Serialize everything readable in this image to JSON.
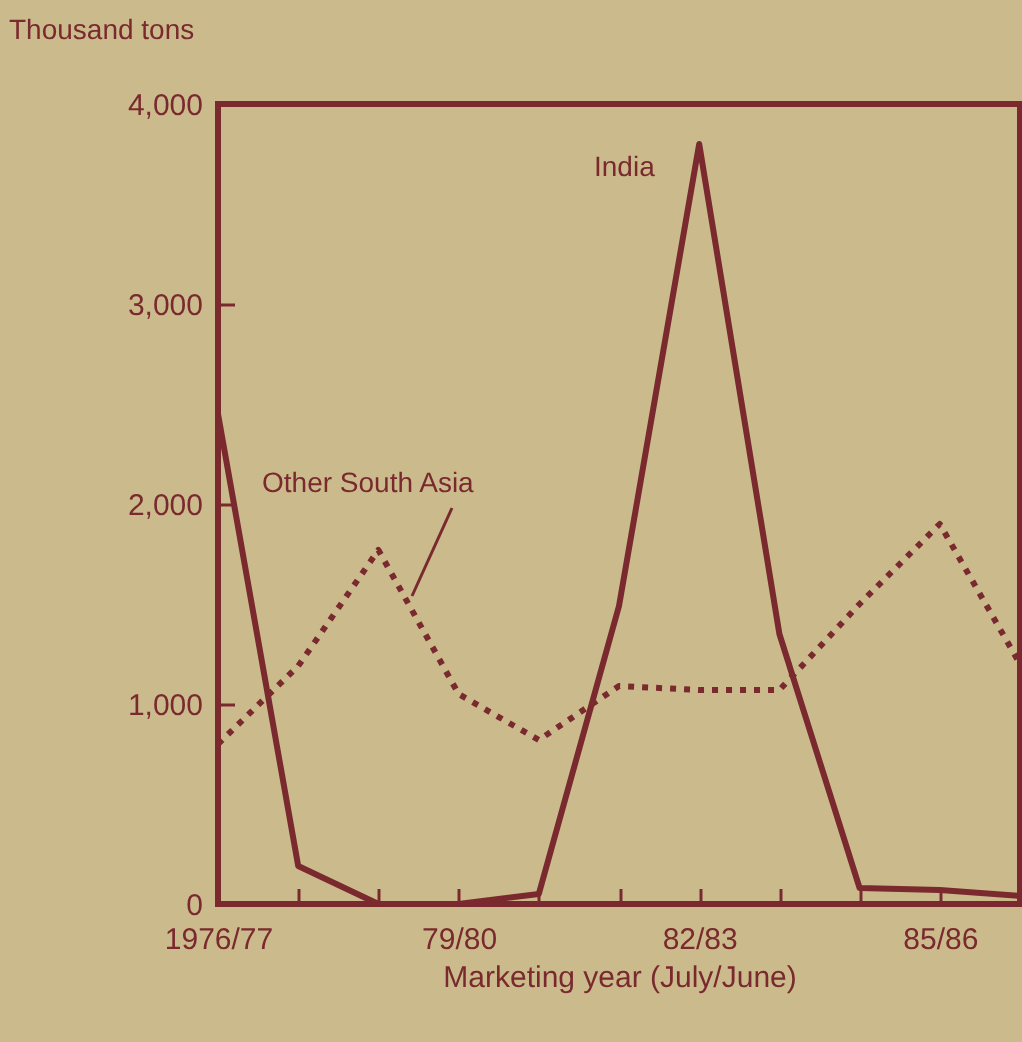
{
  "chart_data": {
    "type": "line",
    "ylabel": "Thousand tons",
    "xlabel": "Marketing year (July/June)",
    "categories": [
      "1976/77",
      null,
      null,
      "79/80",
      null,
      null,
      "82/83",
      null,
      null,
      "85/86",
      null
    ],
    "series": [
      {
        "name": "India",
        "color": "#7a2a2e",
        "line_style": "solid",
        "values": [
          2450,
          190,
          0,
          0,
          50,
          1490,
          3800,
          1350,
          80,
          70,
          40
        ]
      },
      {
        "name": "Other South Asia",
        "color": "#7a2a2e",
        "line_style": "dotted",
        "values": [
          800,
          1190,
          1770,
          1050,
          820,
          1090,
          1070,
          1070,
          1500,
          1900,
          1200
        ]
      }
    ],
    "ylim": [
      0,
      4000
    ],
    "yticks": [
      0,
      {
        "value": 1000,
        "label": "1,000"
      },
      {
        "value": 2000,
        "label": "2,000"
      },
      {
        "value": 3000,
        "label": "3,000"
      },
      {
        "value": 4000,
        "label": "4,000"
      }
    ],
    "grid": false,
    "legend": false,
    "marker": "none"
  }
}
